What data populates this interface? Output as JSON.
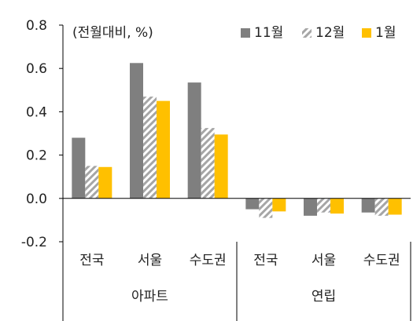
{
  "chart_data": {
    "type": "bar",
    "unit_note": "(전월대비, %)",
    "groups": [
      {
        "label": "아파트",
        "categories": [
          "전국",
          "서울",
          "수도권"
        ]
      },
      {
        "label": "연립",
        "categories": [
          "전국",
          "서울",
          "수도권"
        ]
      }
    ],
    "categories": [
      "전국",
      "서울",
      "수도권",
      "전국",
      "서울",
      "수도권"
    ],
    "series": [
      {
        "name": "11월",
        "color": "#7f7f7f",
        "pattern": "solid",
        "values": [
          0.28,
          0.625,
          0.535,
          -0.05,
          -0.08,
          -0.065
        ]
      },
      {
        "name": "12월",
        "color": "#bfbfbf",
        "pattern": "hatched",
        "values": [
          0.15,
          0.47,
          0.325,
          -0.09,
          -0.065,
          -0.08
        ]
      },
      {
        "name": "1월",
        "color": "#ffc000",
        "pattern": "solid",
        "values": [
          0.145,
          0.45,
          0.295,
          -0.06,
          -0.07,
          -0.075
        ]
      }
    ],
    "ylim": [
      -0.2,
      0.8
    ],
    "yticks": [
      "0.8",
      "0.6",
      "0.4",
      "0.2",
      "0.0",
      "-0.2"
    ],
    "ytick_values": [
      0.8,
      0.6,
      0.4,
      0.2,
      0.0,
      -0.2
    ],
    "grid": false,
    "legend_position": "top-right"
  }
}
